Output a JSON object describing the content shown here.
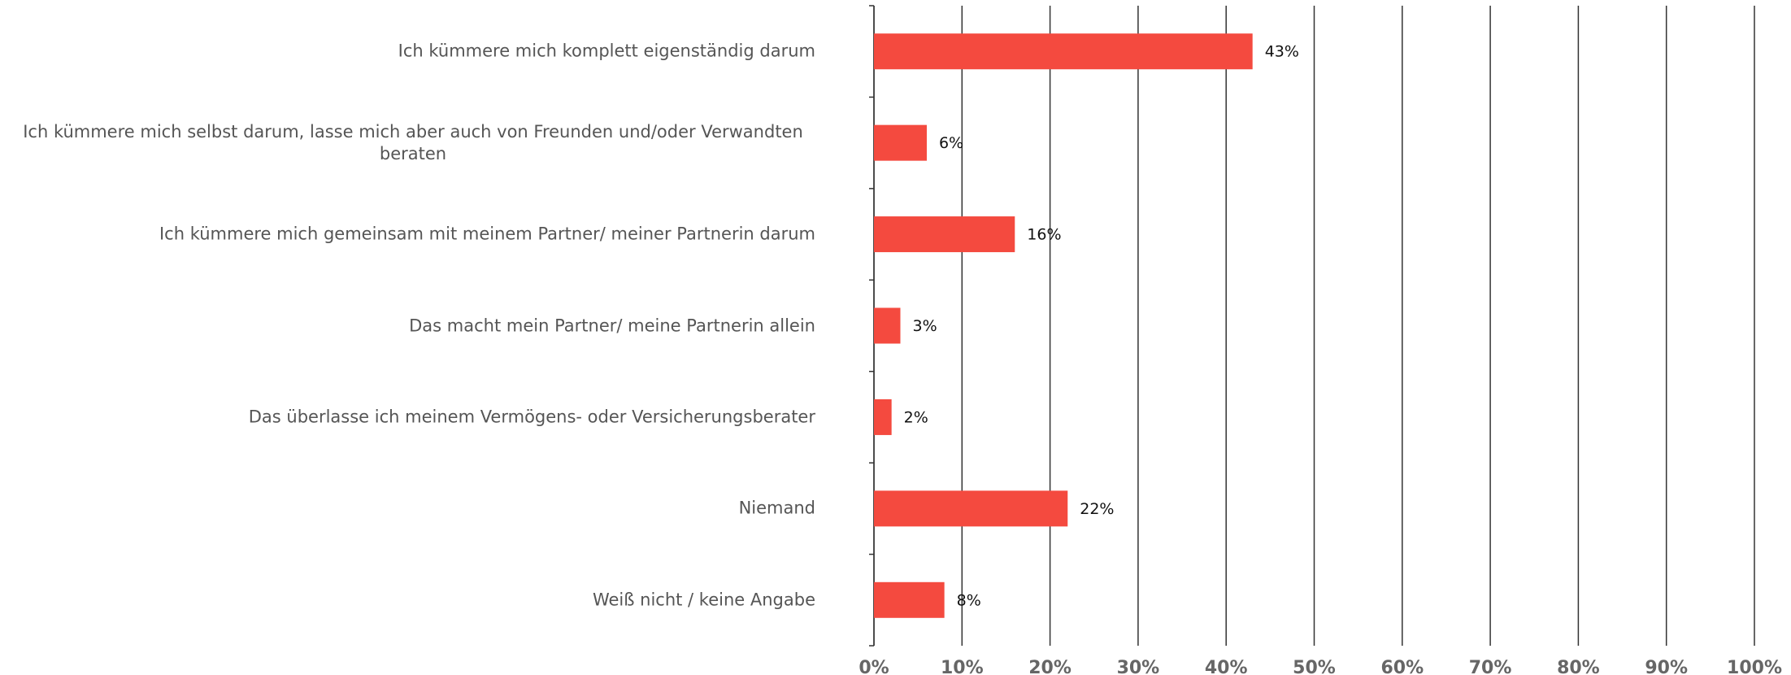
{
  "chart_data": {
    "type": "bar",
    "orientation": "horizontal",
    "categories": [
      "Ich kümmere mich komplett eigenständig darum",
      "Ich kümmere mich selbst darum, lasse mich aber auch von Freunden und/oder Verwandten beraten",
      "Ich kümmere mich gemeinsam mit meinem Partner/ meiner Partnerin darum",
      "Das macht mein Partner/ meine Partnerin allein",
      "Das überlasse ich meinem Vermögens- oder Versicherungsberater",
      "Niemand",
      "Weiß nicht / keine Angabe"
    ],
    "values": [
      43,
      6,
      16,
      3,
      2,
      22,
      8
    ],
    "value_labels": [
      "43%",
      "6%",
      "16%",
      "3%",
      "2%",
      "22%",
      "8%"
    ],
    "color": "#f44a3f",
    "xlim": [
      0,
      100
    ],
    "xticks": [
      {
        "value": 0,
        "label": "0%"
      },
      {
        "value": 10,
        "label": "10%"
      },
      {
        "value": 20,
        "label": "20%"
      },
      {
        "value": 30,
        "label": "30%"
      },
      {
        "value": 40,
        "label": "40%"
      },
      {
        "value": 50,
        "label": "50%"
      },
      {
        "value": 60,
        "label": "60%"
      },
      {
        "value": 70,
        "label": "70%"
      },
      {
        "value": 80,
        "label": "80%"
      },
      {
        "value": 90,
        "label": "90%"
      },
      {
        "value": 100,
        "label": "100%"
      }
    ],
    "grid": true
  }
}
